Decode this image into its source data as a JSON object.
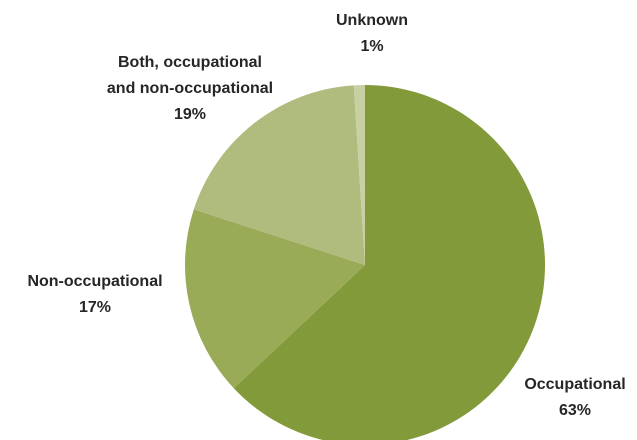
{
  "chart_data": {
    "type": "pie",
    "categories": [
      "Occupational",
      "Non-occupational",
      "Both, occupational and non-occupational",
      "Unknown"
    ],
    "values": [
      63,
      17,
      19,
      1
    ],
    "value_labels": [
      "63%",
      "17%",
      "19%",
      "1%"
    ],
    "colors": [
      "#839a3a",
      "#9aab57",
      "#b0bb7e",
      "#c8cfa3"
    ]
  }
}
